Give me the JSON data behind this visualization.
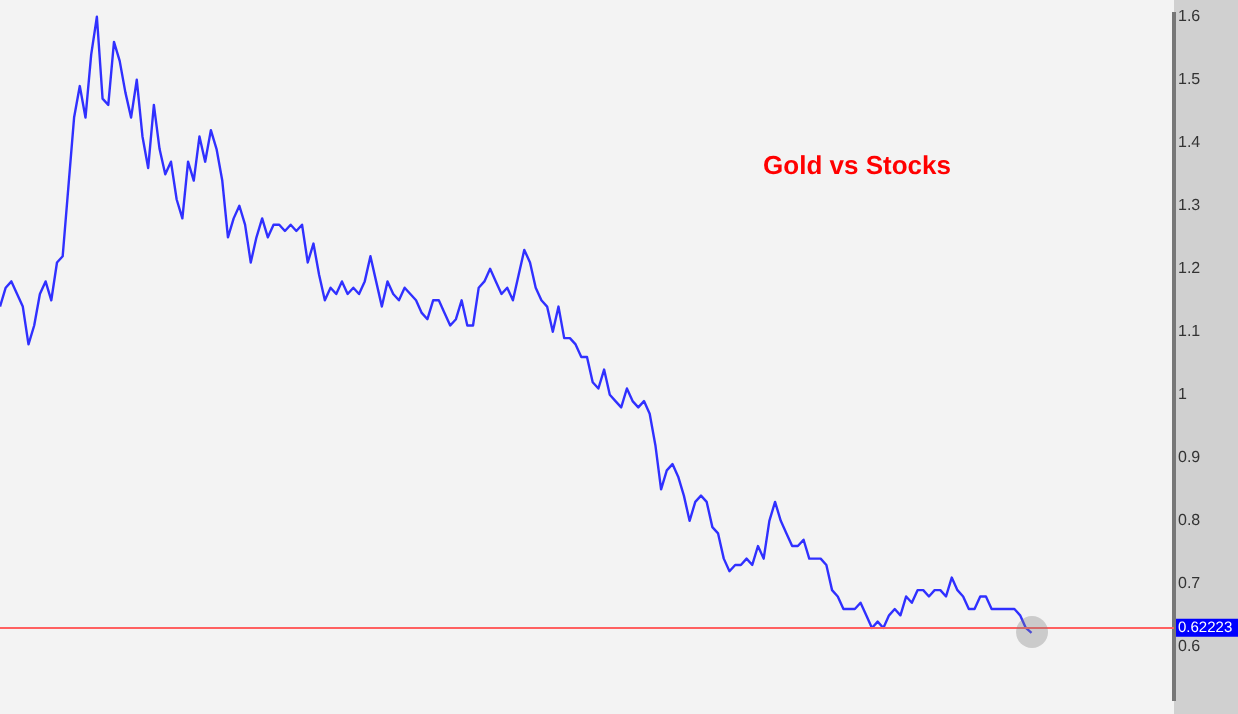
{
  "chart_data": {
    "type": "line",
    "title": "Gold vs Stocks",
    "categories": [
      null,
      null,
      null,
      null,
      null,
      null,
      null,
      null,
      null,
      null,
      null,
      null,
      null,
      null,
      null,
      null,
      null,
      null,
      null,
      null,
      null,
      null,
      null,
      null,
      null,
      null,
      null,
      null,
      null,
      null,
      null,
      null,
      null,
      null,
      null,
      null,
      null,
      null,
      null,
      null,
      null,
      null,
      null,
      null,
      null,
      null,
      null,
      null,
      null,
      null,
      null,
      null,
      null,
      null,
      null,
      null,
      null,
      null,
      null,
      null,
      null,
      null,
      null,
      null,
      null,
      null,
      null,
      null,
      null,
      null,
      null,
      null,
      null,
      null,
      null,
      null,
      null,
      null,
      null,
      null,
      null,
      null,
      null,
      null,
      null,
      null,
      null,
      null,
      null,
      null,
      null,
      null,
      null,
      null,
      null,
      null,
      null,
      null,
      null,
      null,
      null,
      null,
      null,
      null,
      null,
      null,
      null,
      null,
      null,
      null,
      null,
      null,
      null,
      null,
      null,
      null,
      null,
      null,
      null,
      null,
      null,
      null,
      null,
      null,
      null,
      null,
      null,
      null,
      null,
      null,
      null,
      null,
      null,
      null,
      null,
      null,
      null,
      null,
      null,
      null,
      null,
      null,
      null,
      null,
      null,
      null,
      null,
      null,
      null,
      null,
      null,
      null,
      null,
      null,
      null,
      null,
      null,
      null,
      null,
      null,
      null,
      null,
      null,
      null,
      null,
      null,
      null,
      null,
      null,
      null,
      null,
      null,
      null,
      null,
      null,
      null,
      null,
      null,
      null,
      null,
      null,
      null,
      null,
      null,
      null,
      null,
      null,
      null,
      null,
      null,
      null,
      null,
      null,
      null,
      null,
      null,
      null,
      null,
      null,
      null,
      null,
      null,
      null,
      null,
      null,
      null,
      null
    ],
    "series": [
      {
        "color": "#3030ff",
        "values": [
          1.14,
          1.17,
          1.18,
          1.16,
          1.14,
          1.08,
          1.11,
          1.16,
          1.18,
          1.15,
          1.21,
          1.22,
          1.33,
          1.44,
          1.49,
          1.44,
          1.54,
          1.6,
          1.47,
          1.46,
          1.56,
          1.53,
          1.48,
          1.44,
          1.5,
          1.41,
          1.36,
          1.46,
          1.39,
          1.35,
          1.37,
          1.31,
          1.28,
          1.37,
          1.34,
          1.41,
          1.37,
          1.42,
          1.39,
          1.34,
          1.25,
          1.28,
          1.3,
          1.27,
          1.21,
          1.25,
          1.28,
          1.25,
          1.27,
          1.27,
          1.26,
          1.27,
          1.26,
          1.27,
          1.21,
          1.24,
          1.19,
          1.15,
          1.17,
          1.16,
          1.18,
          1.16,
          1.17,
          1.16,
          1.18,
          1.22,
          1.18,
          1.14,
          1.18,
          1.16,
          1.15,
          1.17,
          1.16,
          1.15,
          1.13,
          1.12,
          1.15,
          1.15,
          1.13,
          1.11,
          1.12,
          1.15,
          1.11,
          1.11,
          1.17,
          1.18,
          1.2,
          1.18,
          1.16,
          1.17,
          1.15,
          1.19,
          1.23,
          1.21,
          1.17,
          1.15,
          1.14,
          1.1,
          1.14,
          1.09,
          1.09,
          1.08,
          1.06,
          1.06,
          1.02,
          1.01,
          1.04,
          1.0,
          0.99,
          0.98,
          1.01,
          0.99,
          0.98,
          0.99,
          0.97,
          0.92,
          0.85,
          0.88,
          0.89,
          0.87,
          0.84,
          0.8,
          0.83,
          0.84,
          0.83,
          0.79,
          0.78,
          0.74,
          0.72,
          0.73,
          0.73,
          0.74,
          0.73,
          0.76,
          0.74,
          0.8,
          0.83,
          0.8,
          0.78,
          0.76,
          0.76,
          0.77,
          0.74,
          0.74,
          0.74,
          0.73,
          0.69,
          0.68,
          0.66,
          0.66,
          0.66,
          0.67,
          0.65,
          0.63,
          0.64,
          0.63,
          0.65,
          0.66,
          0.65,
          0.68,
          0.67,
          0.69,
          0.69,
          0.68,
          0.69,
          0.69,
          0.68,
          0.71,
          0.69,
          0.68,
          0.66,
          0.66,
          0.68,
          0.68,
          0.66,
          0.66,
          0.66,
          0.66,
          0.66,
          0.65,
          0.63,
          0.62223,
          null,
          null,
          null,
          null,
          null,
          null,
          null,
          null,
          null,
          null,
          null,
          null,
          null,
          null,
          null,
          null,
          null,
          null,
          null,
          null,
          null,
          null,
          null,
          null,
          null
        ]
      }
    ],
    "ylim": [
      0.515,
      1.605
    ],
    "yticks": [
      0.6,
      0.7,
      0.8,
      0.9,
      1,
      1.1,
      1.2,
      1.3,
      1.4,
      1.5,
      1.6
    ],
    "ref_lines": [
      {
        "axis": "y",
        "value": 0.63,
        "color": "#ff6060"
      }
    ],
    "annotations": [
      "0.62223"
    ],
    "grid": false,
    "legend": false,
    "tick_labels": "y",
    "marker": "none",
    "line_style": "solid"
  }
}
